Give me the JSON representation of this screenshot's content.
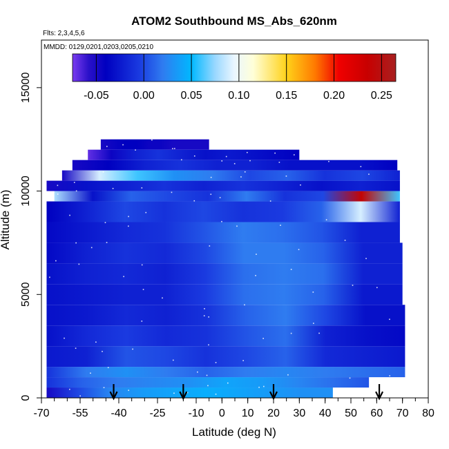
{
  "chart_data": {
    "type": "heatmap",
    "title": "ATOM2 Southbound MS_Abs_620nm",
    "flights_label": "Flts: 2,3,4,5,6",
    "dates_label": "MMDD: 0129,0201,0203,0205,0210",
    "xlabel": "Latitude (deg N)",
    "ylabel": "Altitude (m)",
    "xlim": [
      -70,
      80
    ],
    "ylim": [
      0,
      17300
    ],
    "x_ticks": [
      -70,
      -55,
      -40,
      -25,
      -10,
      0,
      10,
      20,
      30,
      40,
      50,
      60,
      70,
      80
    ],
    "x_tick_labels": [
      "-70",
      "-55",
      "-40",
      "-25",
      "-10",
      "0",
      "10",
      "20",
      "30",
      "40",
      "50",
      "60",
      "70",
      "80"
    ],
    "x_minor_step": 5,
    "y_ticks": [
      0,
      5000,
      10000,
      15000
    ],
    "y_tick_labels": [
      "0",
      "5000",
      "10000",
      "15000"
    ],
    "colorbar": {
      "range": [
        -0.075,
        0.265
      ],
      "ticks": [
        -0.05,
        0.0,
        0.05,
        0.1,
        0.15,
        0.2,
        0.25
      ],
      "tick_labels": [
        "-0.05",
        "0.00",
        "0.05",
        "0.10",
        "0.15",
        "0.20",
        "0.25"
      ],
      "stops": [
        {
          "v": -0.075,
          "c": "#7a3cf0"
        },
        {
          "v": -0.058,
          "c": "#2a10c8"
        },
        {
          "v": -0.04,
          "c": "#0000c0"
        },
        {
          "v": -0.005,
          "c": "#1a3ae0"
        },
        {
          "v": 0.02,
          "c": "#2f7cf0"
        },
        {
          "v": 0.05,
          "c": "#00b8ff"
        },
        {
          "v": 0.075,
          "c": "#9ad8ff"
        },
        {
          "v": 0.095,
          "c": "#eaf6ff"
        },
        {
          "v": 0.115,
          "c": "#ffffd8"
        },
        {
          "v": 0.15,
          "c": "#ffd21a"
        },
        {
          "v": 0.18,
          "c": "#ff7a00"
        },
        {
          "v": 0.205,
          "c": "#f00000"
        },
        {
          "v": 0.235,
          "c": "#c80000"
        },
        {
          "v": 0.265,
          "c": "#a82020"
        }
      ]
    },
    "altitude_bins": [
      {
        "alt": [
          0,
          500
        ],
        "lat": [
          -68,
          43
        ],
        "vals": [
          -0.05,
          0.0,
          0.025,
          0.035,
          0.04,
          0.045,
          0.04,
          0.035,
          0.03,
          0.03
        ]
      },
      {
        "alt": [
          500,
          1000
        ],
        "lat": [
          -68,
          57
        ],
        "vals": [
          -0.01,
          0.01,
          0.02,
          0.025,
          0.03,
          0.04,
          0.035,
          0.025,
          0.015,
          0.005
        ]
      },
      {
        "alt": [
          1000,
          1500
        ],
        "lat": [
          -68,
          71
        ],
        "vals": [
          -0.01,
          0.02,
          0.03,
          0.02,
          0.01,
          0.02,
          0.025,
          0.02,
          0.015,
          0.01
        ]
      },
      {
        "alt": [
          1500,
          2500
        ],
        "lat": [
          -68,
          71
        ],
        "vals": [
          -0.025,
          -0.02,
          0.005,
          0.0,
          -0.01,
          0.0,
          0.01,
          -0.015,
          -0.02,
          -0.025
        ]
      },
      {
        "alt": [
          2500,
          3500
        ],
        "lat": [
          -68,
          71
        ],
        "vals": [
          -0.03,
          -0.015,
          -0.005,
          -0.015,
          -0.01,
          0.005,
          0.015,
          -0.02,
          -0.03,
          -0.035
        ]
      },
      {
        "alt": [
          3500,
          4500
        ],
        "lat": [
          -68,
          71
        ],
        "vals": [
          -0.03,
          -0.025,
          -0.015,
          -0.02,
          -0.01,
          0.01,
          0.02,
          0.0,
          -0.03,
          -0.03
        ]
      },
      {
        "alt": [
          4500,
          5500
        ],
        "lat": [
          -68,
          70
        ],
        "vals": [
          -0.03,
          -0.025,
          -0.02,
          -0.02,
          -0.005,
          0.015,
          0.02,
          0.01,
          -0.025,
          -0.025
        ]
      },
      {
        "alt": [
          5500,
          6500
        ],
        "lat": [
          -68,
          70
        ],
        "vals": [
          -0.03,
          -0.02,
          -0.015,
          -0.02,
          -0.005,
          0.015,
          0.02,
          0.015,
          -0.02,
          -0.02
        ]
      },
      {
        "alt": [
          6500,
          7500
        ],
        "lat": [
          -68,
          70
        ],
        "vals": [
          -0.035,
          -0.02,
          -0.01,
          -0.015,
          0.0,
          0.02,
          0.02,
          0.01,
          -0.02,
          -0.02
        ]
      },
      {
        "alt": [
          7500,
          8500
        ],
        "lat": [
          -68,
          69
        ],
        "vals": [
          -0.035,
          -0.025,
          -0.015,
          -0.01,
          0.005,
          0.02,
          0.015,
          0.005,
          -0.02,
          -0.02
        ]
      },
      {
        "alt": [
          8500,
          9500
        ],
        "lat": [
          -68,
          69
        ],
        "vals": [
          -0.04,
          -0.02,
          0.0,
          -0.01,
          0.0,
          -0.01,
          -0.005,
          0.01,
          0.09,
          -0.02
        ]
      },
      {
        "alt": [
          9500,
          10000
        ],
        "lat": [
          -65,
          69
        ],
        "vals": [
          0.08,
          -0.03,
          0.01,
          0.0,
          -0.01,
          0.02,
          -0.01,
          0.0,
          0.24,
          0.06
        ]
      },
      {
        "alt": [
          10000,
          10500
        ],
        "lat": [
          -68,
          69
        ],
        "vals": [
          -0.05,
          -0.03,
          -0.02,
          -0.01,
          -0.02,
          -0.01,
          -0.02,
          -0.03,
          -0.02,
          -0.03
        ]
      },
      {
        "alt": [
          10500,
          11000
        ],
        "lat": [
          -62,
          69
        ],
        "vals": [
          -0.05,
          0.09,
          0.06,
          0.03,
          0.02,
          0.0,
          0.01,
          -0.01,
          0.0,
          -0.02
        ]
      },
      {
        "alt": [
          11000,
          11500
        ],
        "lat": [
          -58,
          68
        ],
        "vals": [
          -0.05,
          -0.04,
          -0.02,
          -0.01,
          -0.02,
          -0.02,
          -0.03,
          -0.03,
          -0.03,
          -0.04
        ]
      },
      {
        "alt": [
          11500,
          12000
        ],
        "lat": [
          -52,
          30
        ],
        "vals": [
          -0.07,
          -0.045,
          -0.02,
          -0.01,
          -0.02,
          -0.03,
          -0.025,
          -0.03,
          -0.035,
          -0.04
        ]
      },
      {
        "alt": [
          12000,
          12500
        ],
        "lat": [
          -47,
          -5
        ],
        "vals": [
          -0.05,
          -0.045,
          -0.04,
          -0.04,
          -0.045,
          -0.045,
          -0.05,
          -0.05,
          -0.05,
          -0.05
        ]
      }
    ],
    "arrows_latitude": [
      -42,
      -15,
      20,
      61
    ]
  }
}
